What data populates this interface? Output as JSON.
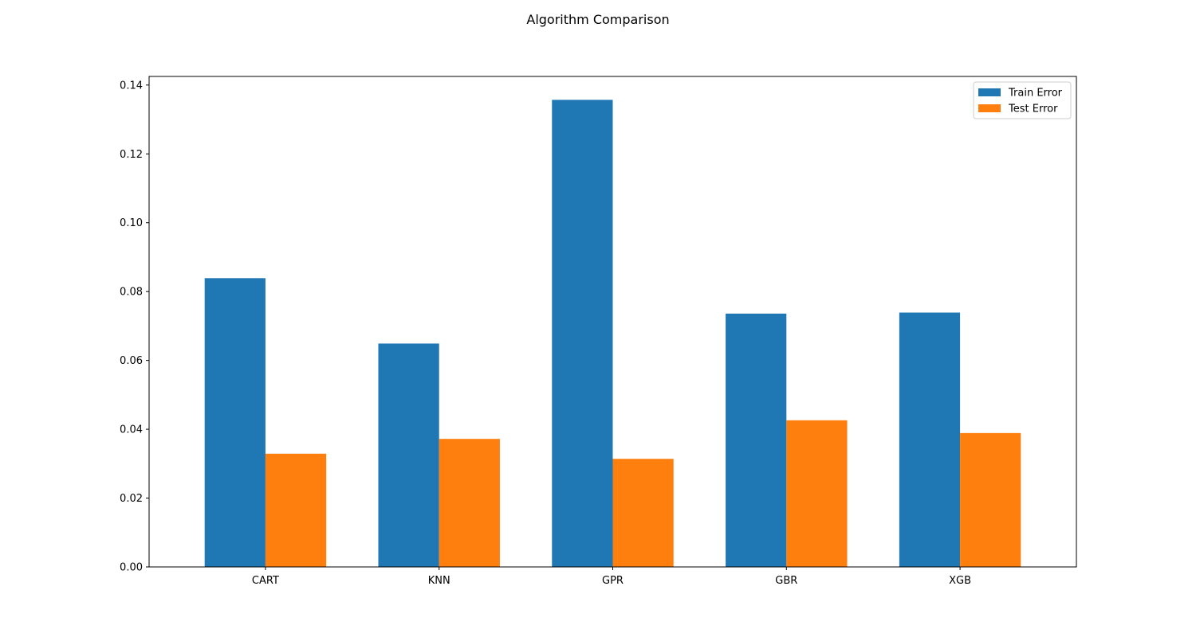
{
  "chart_data": {
    "type": "bar",
    "title": "Algorithm Comparison",
    "xlabel": "",
    "ylabel": "",
    "categories": [
      "CART",
      "KNN",
      "GPR",
      "GBR",
      "XGB"
    ],
    "series": [
      {
        "name": "Train Error",
        "color": "#1f77b4",
        "values": [
          0.0839,
          0.0649,
          0.1357,
          0.0736,
          0.0739
        ]
      },
      {
        "name": "Test Error",
        "color": "#ff7f0e",
        "values": [
          0.0329,
          0.0372,
          0.0314,
          0.0426,
          0.0389
        ]
      }
    ],
    "ylim": [
      0,
      0.1425
    ],
    "yticks": [
      "0.00",
      "0.02",
      "0.04",
      "0.06",
      "0.08",
      "0.10",
      "0.12",
      "0.14"
    ],
    "grid": false,
    "legend_position": "top-right"
  }
}
